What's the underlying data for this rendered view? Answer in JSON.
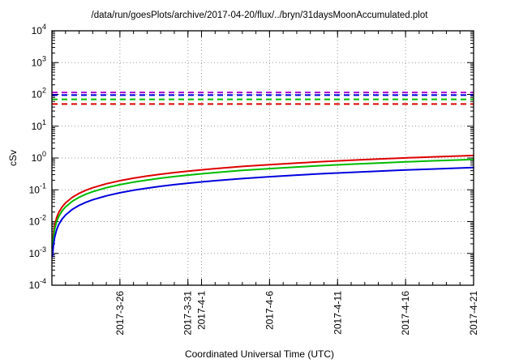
{
  "title": "/data/run/goesPlots/archive/2017-04-20/flux/../bryn/31daysMoonAccumulated.plot",
  "chart_data": {
    "type": "line",
    "title": "/data/run/goesPlots/archive/2017-04-20/flux/../bryn/31daysMoonAccumulated.plot",
    "xlabel": "Coordinated Universal Time (UTC)",
    "ylabel": "cSv",
    "x_axis": {
      "label": "Coordinated Universal Time (UTC)",
      "unit": "days since 2017-3-21",
      "span_days": 31,
      "ticks": [
        {
          "label": "2017-3-26",
          "day": 5
        },
        {
          "label": "2017-3-31",
          "day": 10
        },
        {
          "label": "2017-4-1",
          "day": 11
        },
        {
          "label": "2017-4-6",
          "day": 16
        },
        {
          "label": "2017-4-11",
          "day": 21
        },
        {
          "label": "2017-4-16",
          "day": 26
        },
        {
          "label": "2017-4-21",
          "day": 31
        }
      ]
    },
    "y_axis": {
      "label": "cSv",
      "scale": "log10",
      "log_min": -4,
      "log_max": 4,
      "grid": "dotted"
    },
    "days": [
      0.05,
      0.1,
      0.2,
      0.35,
      0.5,
      0.75,
      1,
      1.5,
      2,
      2.5,
      3,
      4,
      5,
      6,
      7,
      8,
      9,
      10,
      11,
      12,
      14,
      16,
      18,
      20,
      22,
      24,
      26,
      28,
      30,
      31
    ],
    "series": [
      {
        "name": "red-accumulated",
        "color": "#dd0000",
        "values": [
          0.0019,
          0.0039,
          0.0077,
          0.0135,
          0.0194,
          0.029,
          0.0387,
          0.0581,
          0.0774,
          0.0968,
          0.1161,
          0.1548,
          0.1935,
          0.2323,
          0.271,
          0.3097,
          0.3484,
          0.3871,
          0.4258,
          0.4645,
          0.5419,
          0.6194,
          0.6968,
          0.7742,
          0.8516,
          0.929,
          1.0065,
          1.0839,
          1.1613,
          1.2
        ]
      },
      {
        "name": "green-accumulated",
        "color": "#00bb00",
        "values": [
          0.0015,
          0.0029,
          0.0058,
          0.0102,
          0.0145,
          0.0218,
          0.029,
          0.0435,
          0.0581,
          0.0726,
          0.0871,
          0.1161,
          0.1452,
          0.1742,
          0.2032,
          0.2323,
          0.2613,
          0.2903,
          0.3194,
          0.3484,
          0.4065,
          0.4645,
          0.5226,
          0.5806,
          0.6387,
          0.6968,
          0.7548,
          0.8129,
          0.871,
          0.9
        ]
      },
      {
        "name": "blue-accumulated",
        "color": "#0000dd",
        "values": [
          0.0008,
          0.0016,
          0.0032,
          0.0056,
          0.0081,
          0.0121,
          0.0161,
          0.0242,
          0.0323,
          0.0403,
          0.0484,
          0.0645,
          0.0806,
          0.0968,
          0.1129,
          0.129,
          0.1452,
          0.1613,
          0.1774,
          0.1935,
          0.2258,
          0.2581,
          0.2903,
          0.3226,
          0.3548,
          0.3871,
          0.4194,
          0.4516,
          0.4839,
          0.5
        ]
      }
    ],
    "limit_lines": [
      {
        "name": "limit-magenta",
        "color": "#aa00cc",
        "value": 115,
        "style": "dashed"
      },
      {
        "name": "limit-blue",
        "color": "#0000dd",
        "value": 95,
        "style": "dashed"
      },
      {
        "name": "limit-green",
        "color": "#00bb00",
        "value": 70,
        "style": "dashed"
      },
      {
        "name": "limit-red",
        "color": "#dd0000",
        "value": 50,
        "style": "dashed"
      }
    ]
  }
}
